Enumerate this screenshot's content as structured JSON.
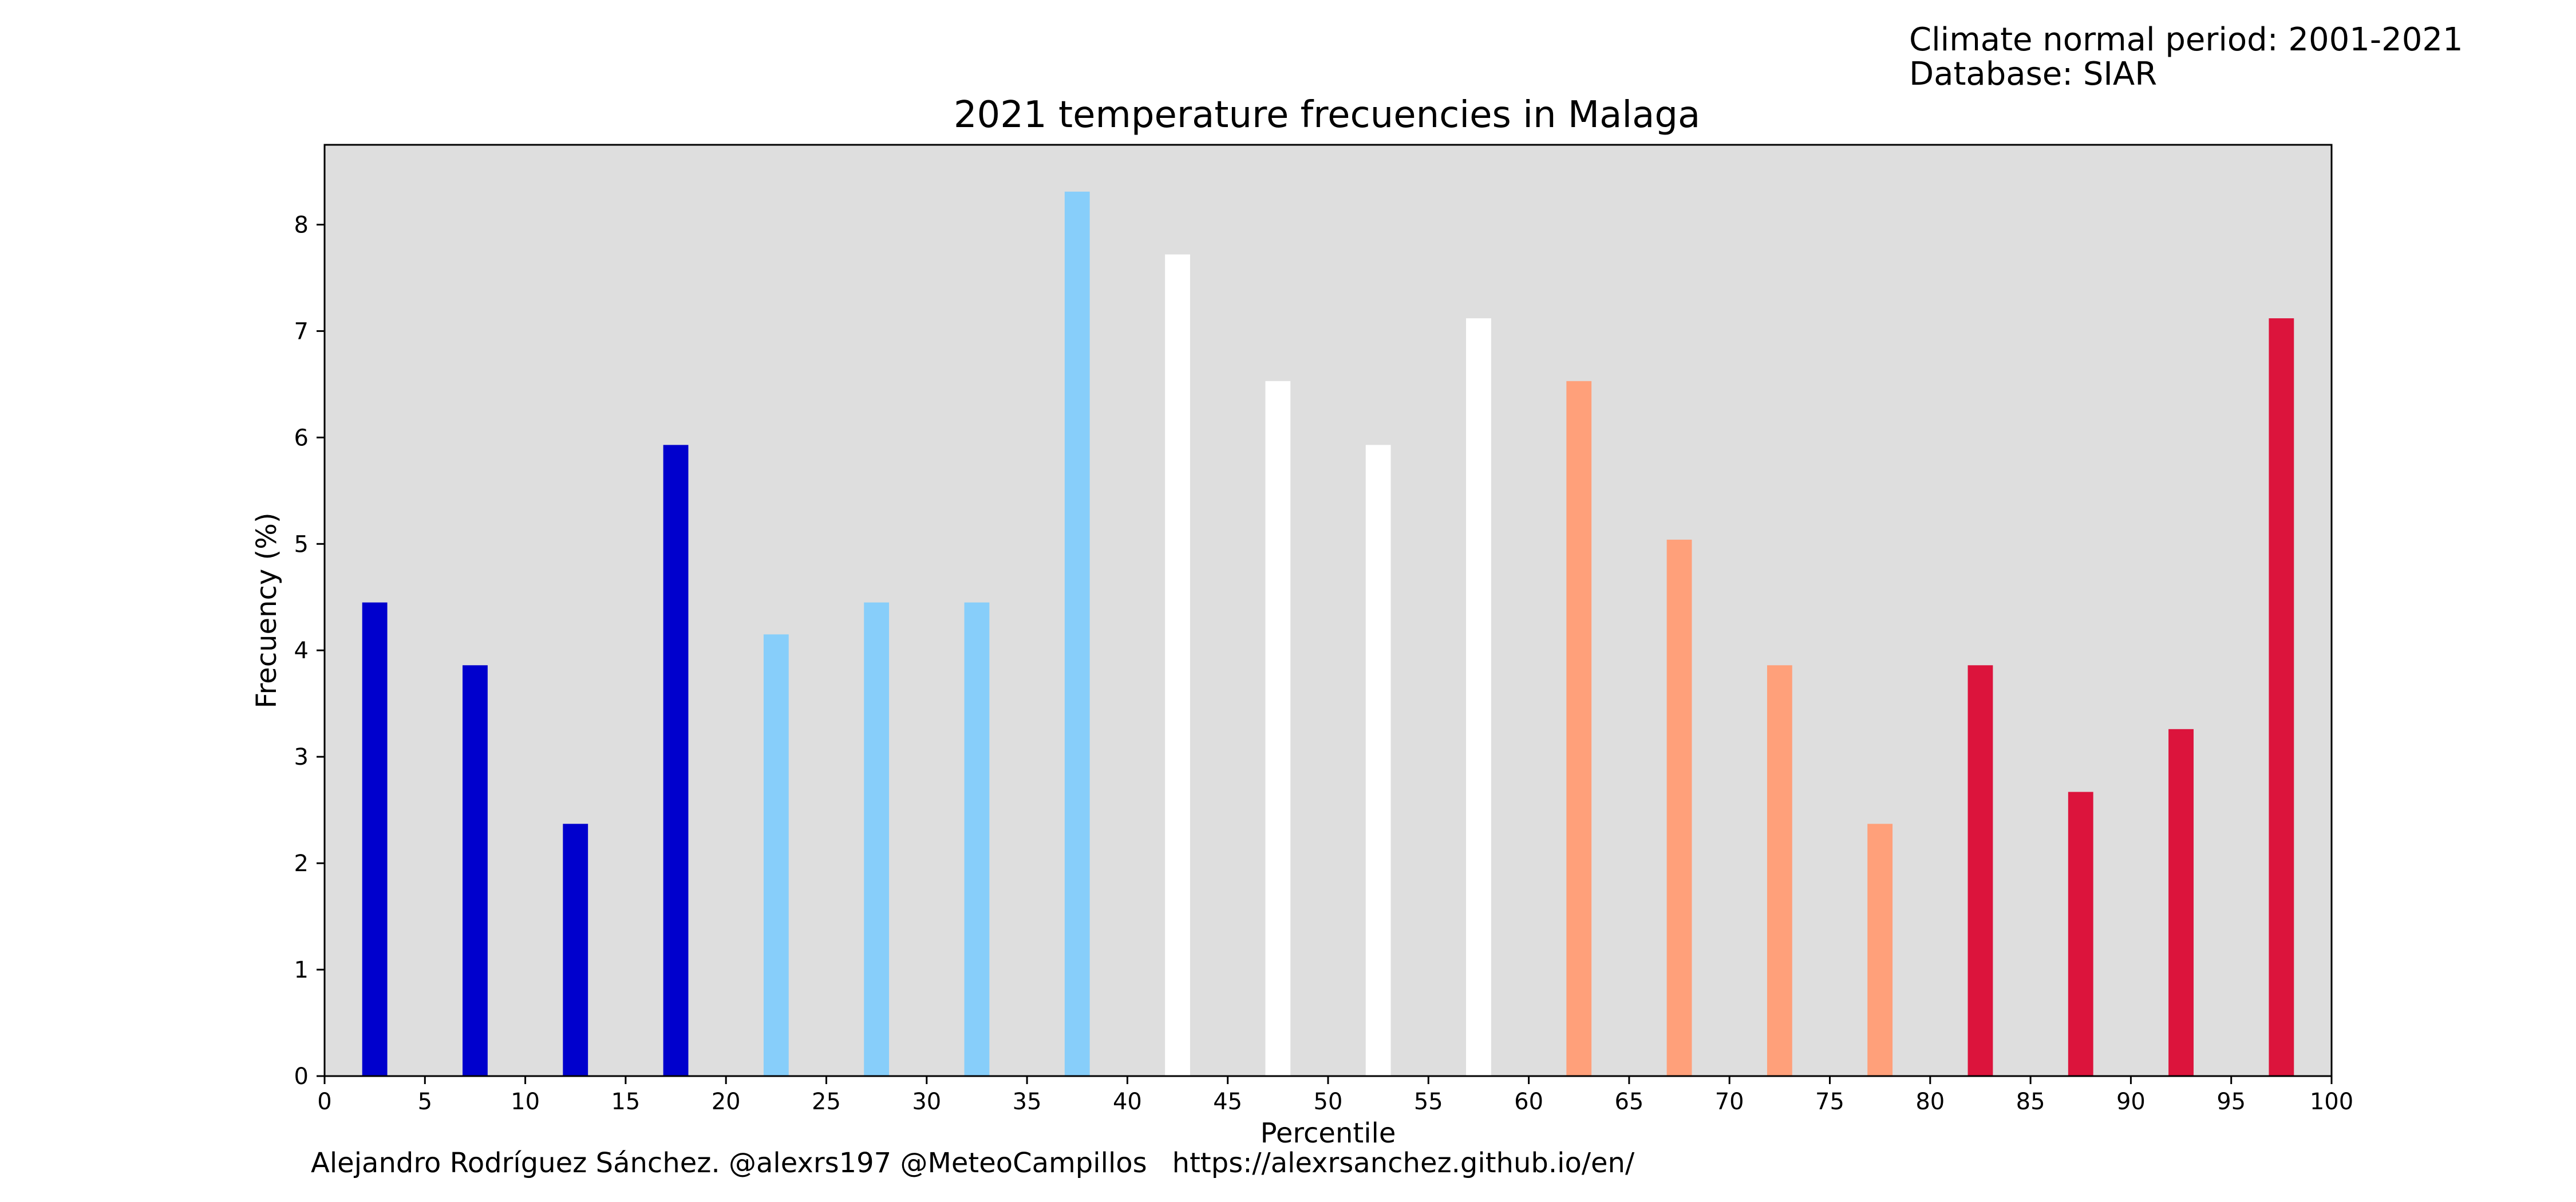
{
  "meta": {
    "period": "Climate normal period: 2001-2021",
    "database": "Database: SIAR"
  },
  "credit": {
    "author": "Alejandro Rodríguez Sánchez. @alexrs197 @MeteoCampillos",
    "url": "https://alexrsanchez.github.io/en/"
  },
  "colors": {
    "plot_background": "#dedede",
    "very_cold": "#0000cd",
    "cold": "#87cefa",
    "normal": "#ffffff",
    "warm": "#ffa07a",
    "very_warm": "#dc143c"
  },
  "chart_data": {
    "type": "bar",
    "title": "2021 temperature frecuencies in Malaga",
    "xlabel": "Percentile",
    "ylabel": "Frecuency (%)",
    "xlim": [
      0,
      100
    ],
    "ylim": [
      0,
      8.75
    ],
    "xticks": [
      "0",
      "5",
      "10",
      "15",
      "20",
      "25",
      "30",
      "35",
      "40",
      "45",
      "50",
      "55",
      "60",
      "65",
      "70",
      "75",
      "80",
      "85",
      "90",
      "95",
      "100"
    ],
    "yticks": [
      "0",
      "1",
      "2",
      "3",
      "4",
      "5",
      "6",
      "7",
      "8"
    ],
    "bar_width": 1.25,
    "grid": false,
    "x": [
      2.5,
      7.5,
      12.5,
      17.5,
      22.5,
      27.5,
      32.5,
      37.5,
      42.5,
      47.5,
      52.5,
      57.5,
      62.5,
      67.5,
      72.5,
      77.5,
      82.5,
      87.5,
      92.5,
      97.5
    ],
    "values": [
      4.45,
      3.86,
      2.37,
      5.93,
      4.15,
      4.45,
      4.45,
      8.31,
      7.72,
      6.53,
      5.93,
      7.12,
      6.53,
      5.04,
      3.86,
      2.37,
      3.86,
      2.67,
      3.26,
      7.12
    ],
    "bar_colors": [
      "#0000cd",
      "#0000cd",
      "#0000cd",
      "#0000cd",
      "#87cefa",
      "#87cefa",
      "#87cefa",
      "#87cefa",
      "#ffffff",
      "#ffffff",
      "#ffffff",
      "#ffffff",
      "#ffa07a",
      "#ffa07a",
      "#ffa07a",
      "#ffa07a",
      "#dc143c",
      "#dc143c",
      "#dc143c",
      "#dc143c"
    ]
  }
}
